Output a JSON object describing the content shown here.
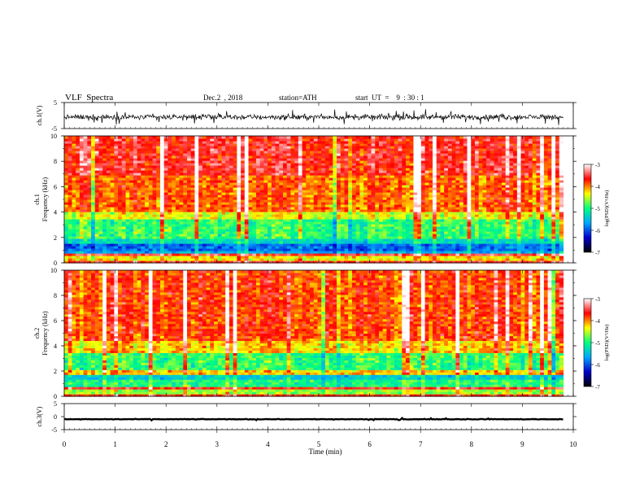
{
  "header": {
    "title": "VLF  Spectra",
    "date": "Dec.2  , 2018",
    "station": "station=ATH",
    "start": "start  UT  =    9  : 30 : 1"
  },
  "colorscale": {
    "stops": [
      "#000000",
      "#0000cc",
      "#00a8ff",
      "#00ff80",
      "#ffff00",
      "#ff0000",
      "#ffffff"
    ]
  },
  "chart_data": [
    {
      "type": "line",
      "panel": "ch1-waveform",
      "ylabel": "ch.1(V)",
      "ylim": [
        -5,
        5
      ],
      "ytick_labels": [
        "5",
        "-5"
      ],
      "xlim": [
        0,
        10
      ],
      "x_end_min": 9.8,
      "mean_value": -0.6,
      "amplitude": 2.0
    },
    {
      "type": "heatmap",
      "panel": "ch1-spectrogram",
      "ylabel": "ch.1\nFrequency (kHz)",
      "ylim": [
        0,
        10
      ],
      "ytick_labels": [
        "0",
        "2",
        "4",
        "6",
        "8",
        "10"
      ],
      "xlim": [
        0,
        10
      ],
      "x_end_min": 9.8,
      "colorbar": {
        "label": "log(PSD)(V²/Hz)",
        "ticks": [
          "-3",
          "-4",
          "-5",
          "-6",
          "-7"
        ],
        "range": [
          -7,
          -3
        ]
      },
      "bands_khz": [
        {
          "from": 0.0,
          "to": 0.2,
          "logpsd": -3.6
        },
        {
          "from": 0.2,
          "to": 0.5,
          "logpsd": -4.3
        },
        {
          "from": 0.5,
          "to": 0.7,
          "logpsd": -3.5
        },
        {
          "from": 0.7,
          "to": 1.0,
          "logpsd": -5.6
        },
        {
          "from": 1.0,
          "to": 1.6,
          "logpsd": -5.9
        },
        {
          "from": 1.6,
          "to": 2.0,
          "logpsd": -5.3
        },
        {
          "from": 2.0,
          "to": 3.5,
          "logpsd": -4.9
        },
        {
          "from": 3.5,
          "to": 4.0,
          "logpsd": -4.4
        },
        {
          "from": 4.0,
          "to": 7.0,
          "logpsd": -3.9
        },
        {
          "from": 7.0,
          "to": 10.0,
          "logpsd": -3.6
        }
      ]
    },
    {
      "type": "heatmap",
      "panel": "ch2-spectrogram",
      "ylabel": "ch.2\nFrequency (kHz)",
      "ylim": [
        0,
        10
      ],
      "ytick_labels": [
        "0",
        "2",
        "4",
        "6",
        "8",
        "10"
      ],
      "xlim": [
        0,
        10
      ],
      "x_end_min": 9.8,
      "colorbar": {
        "label": "log(PSD)(V²/Hz)",
        "ticks": [
          "-3",
          "-4",
          "-5",
          "-6",
          "-7"
        ],
        "range": [
          -7,
          -3
        ]
      },
      "bands_khz": [
        {
          "from": 0.0,
          "to": 0.2,
          "logpsd": -3.7
        },
        {
          "from": 0.2,
          "to": 0.5,
          "logpsd": -4.6
        },
        {
          "from": 0.5,
          "to": 0.8,
          "logpsd": -3.6
        },
        {
          "from": 0.8,
          "to": 1.3,
          "logpsd": -5.0
        },
        {
          "from": 1.3,
          "to": 1.8,
          "logpsd": -5.4
        },
        {
          "from": 1.8,
          "to": 2.2,
          "logpsd": -4.2
        },
        {
          "from": 2.2,
          "to": 3.5,
          "logpsd": -4.9
        },
        {
          "from": 3.5,
          "to": 4.5,
          "logpsd": -4.2
        },
        {
          "from": 4.5,
          "to": 10.0,
          "logpsd": -3.8
        }
      ]
    },
    {
      "type": "line",
      "panel": "ch3-waveform",
      "ylabel": "ch.3(V)",
      "ylim": [
        -5,
        5
      ],
      "ytick_labels": [
        "5",
        "0",
        "-5"
      ],
      "xlim": [
        0,
        10
      ],
      "x_end_min": 9.8,
      "mean_value": -1.0,
      "amplitude": 0.2
    }
  ],
  "xaxis": {
    "label": "Time  (min)",
    "ticks": [
      "0",
      "1",
      "2",
      "3",
      "4",
      "5",
      "6",
      "7",
      "8",
      "9",
      "10"
    ]
  }
}
